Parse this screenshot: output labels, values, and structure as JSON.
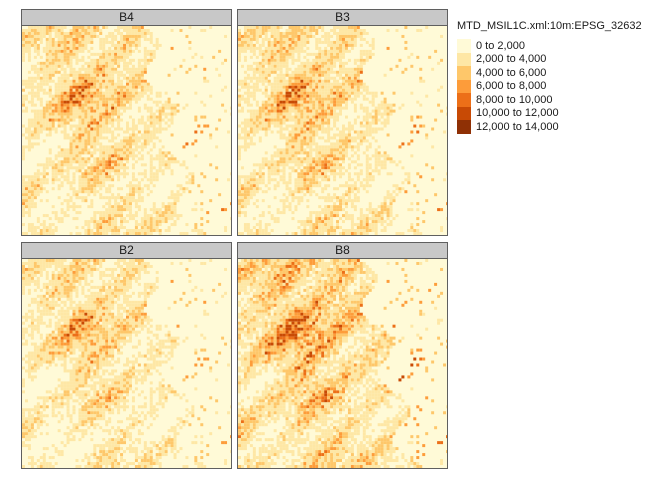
{
  "panels": [
    {
      "label": "B4"
    },
    {
      "label": "B3"
    },
    {
      "label": "B2"
    },
    {
      "label": "B8"
    }
  ],
  "legend": {
    "title": "MTD_MSIL1C.xml:10m:EPSG_32632",
    "classes": [
      {
        "label": "0 to 2,000",
        "color": "#fffad7"
      },
      {
        "label": "2,000 to 4,000",
        "color": "#fee7a5"
      },
      {
        "label": "4,000 to 6,000",
        "color": "#fec76a"
      },
      {
        "label": "6,000 to 8,000",
        "color": "#fd9c3a"
      },
      {
        "label": "8,000 to 10,000",
        "color": "#ec6f18"
      },
      {
        "label": "10,000 to 12,000",
        "color": "#c84a05"
      },
      {
        "label": "12,000 to 14,000",
        "color": "#8f3005"
      }
    ]
  }
}
